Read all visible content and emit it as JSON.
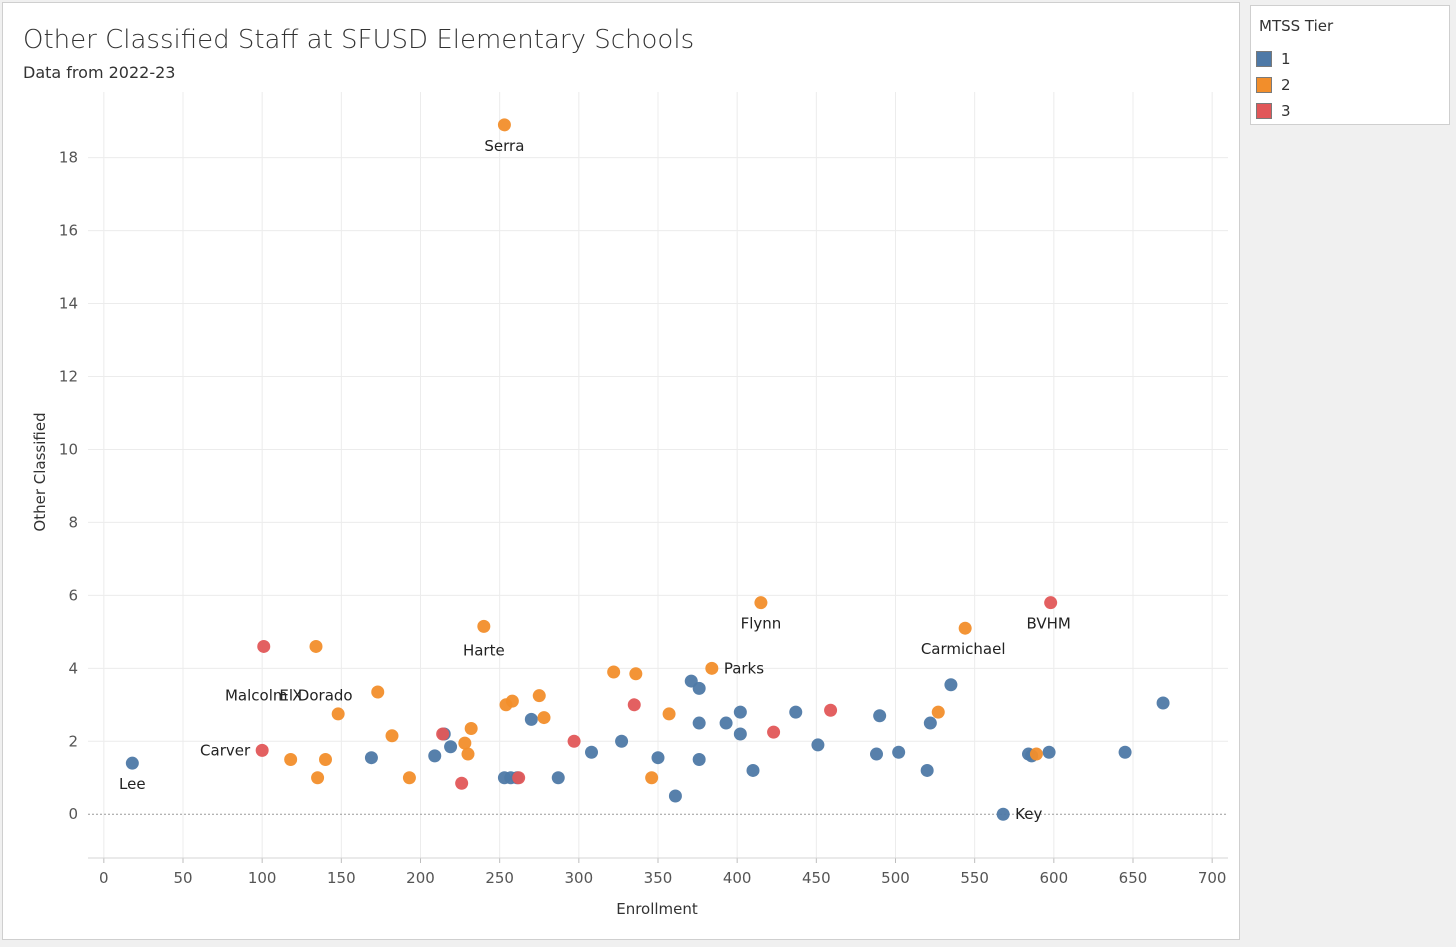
{
  "chart_data": {
    "type": "scatter",
    "title": "Other Classified Staff at SFUSD Elementary Schools",
    "subtitle": "Data from 2022-23",
    "xlabel": "Enrollment",
    "ylabel": "Other Classified",
    "xlim": [
      -10,
      710
    ],
    "ylim": [
      -1.2,
      19.8
    ],
    "xticks": [
      0,
      50,
      100,
      150,
      200,
      250,
      300,
      350,
      400,
      450,
      500,
      550,
      600,
      650,
      700
    ],
    "yticks": [
      0,
      2,
      4,
      6,
      8,
      10,
      12,
      14,
      16,
      18
    ],
    "grid": true,
    "zero_line": "dotted",
    "legend_title": "MTSS Tier",
    "legend_position": "right",
    "series": [
      {
        "name": "1",
        "color": "#4e79a7",
        "points": [
          {
            "x": 18,
            "y": 1.4,
            "label": "Lee"
          },
          {
            "x": 169,
            "y": 1.55
          },
          {
            "x": 209,
            "y": 1.6
          },
          {
            "x": 215,
            "y": 2.2
          },
          {
            "x": 219,
            "y": 1.85
          },
          {
            "x": 253,
            "y": 1.0
          },
          {
            "x": 257,
            "y": 1.0
          },
          {
            "x": 261,
            "y": 1.0
          },
          {
            "x": 270,
            "y": 2.6
          },
          {
            "x": 287,
            "y": 1.0
          },
          {
            "x": 308,
            "y": 1.7
          },
          {
            "x": 327,
            "y": 2.0
          },
          {
            "x": 350,
            "y": 1.55
          },
          {
            "x": 361,
            "y": 0.5
          },
          {
            "x": 371,
            "y": 3.65
          },
          {
            "x": 376,
            "y": 3.45
          },
          {
            "x": 376,
            "y": 2.5
          },
          {
            "x": 376,
            "y": 1.5
          },
          {
            "x": 393,
            "y": 2.5
          },
          {
            "x": 402,
            "y": 2.8
          },
          {
            "x": 402,
            "y": 2.2
          },
          {
            "x": 410,
            "y": 1.2
          },
          {
            "x": 437,
            "y": 2.8
          },
          {
            "x": 451,
            "y": 1.9
          },
          {
            "x": 488,
            "y": 1.65
          },
          {
            "x": 490,
            "y": 2.7
          },
          {
            "x": 502,
            "y": 1.7
          },
          {
            "x": 520,
            "y": 1.2
          },
          {
            "x": 522,
            "y": 2.5
          },
          {
            "x": 535,
            "y": 3.55
          },
          {
            "x": 568,
            "y": 0.0,
            "label": "Key"
          },
          {
            "x": 584,
            "y": 1.65
          },
          {
            "x": 586,
            "y": 1.6
          },
          {
            "x": 597,
            "y": 1.7
          },
          {
            "x": 645,
            "y": 1.7
          },
          {
            "x": 669,
            "y": 3.05
          }
        ]
      },
      {
        "name": "2",
        "color": "#f28e2b",
        "points": [
          {
            "x": 118,
            "y": 1.5
          },
          {
            "x": 134,
            "y": 4.6,
            "label": "El Dorado"
          },
          {
            "x": 135,
            "y": 1.0
          },
          {
            "x": 140,
            "y": 1.5
          },
          {
            "x": 148,
            "y": 2.75
          },
          {
            "x": 173,
            "y": 3.35
          },
          {
            "x": 182,
            "y": 2.15
          },
          {
            "x": 193,
            "y": 1.0
          },
          {
            "x": 228,
            "y": 1.95
          },
          {
            "x": 230,
            "y": 1.65
          },
          {
            "x": 232,
            "y": 2.35
          },
          {
            "x": 240,
            "y": 5.15,
            "label": "Harte"
          },
          {
            "x": 253,
            "y": 18.9,
            "label": "Serra"
          },
          {
            "x": 254,
            "y": 3.0
          },
          {
            "x": 258,
            "y": 3.1
          },
          {
            "x": 275,
            "y": 3.25
          },
          {
            "x": 278,
            "y": 2.65
          },
          {
            "x": 322,
            "y": 3.9
          },
          {
            "x": 336,
            "y": 3.85
          },
          {
            "x": 346,
            "y": 1.0
          },
          {
            "x": 357,
            "y": 2.75
          },
          {
            "x": 384,
            "y": 4.0,
            "label": "Parks"
          },
          {
            "x": 415,
            "y": 5.8,
            "label": "Flynn"
          },
          {
            "x": 527,
            "y": 2.8
          },
          {
            "x": 544,
            "y": 5.1,
            "label": "Carmichael"
          },
          {
            "x": 589,
            "y": 1.65
          }
        ]
      },
      {
        "name": "3",
        "color": "#e15759",
        "points": [
          {
            "x": 100,
            "y": 1.75,
            "label": "Carver"
          },
          {
            "x": 101,
            "y": 4.6,
            "label": "Malcolm X"
          },
          {
            "x": 214,
            "y": 2.2
          },
          {
            "x": 226,
            "y": 0.85
          },
          {
            "x": 262,
            "y": 1.0
          },
          {
            "x": 297,
            "y": 2.0
          },
          {
            "x": 335,
            "y": 3.0
          },
          {
            "x": 423,
            "y": 2.25
          },
          {
            "x": 459,
            "y": 2.85
          },
          {
            "x": 598,
            "y": 5.8,
            "label": "BVHM"
          }
        ]
      }
    ]
  }
}
